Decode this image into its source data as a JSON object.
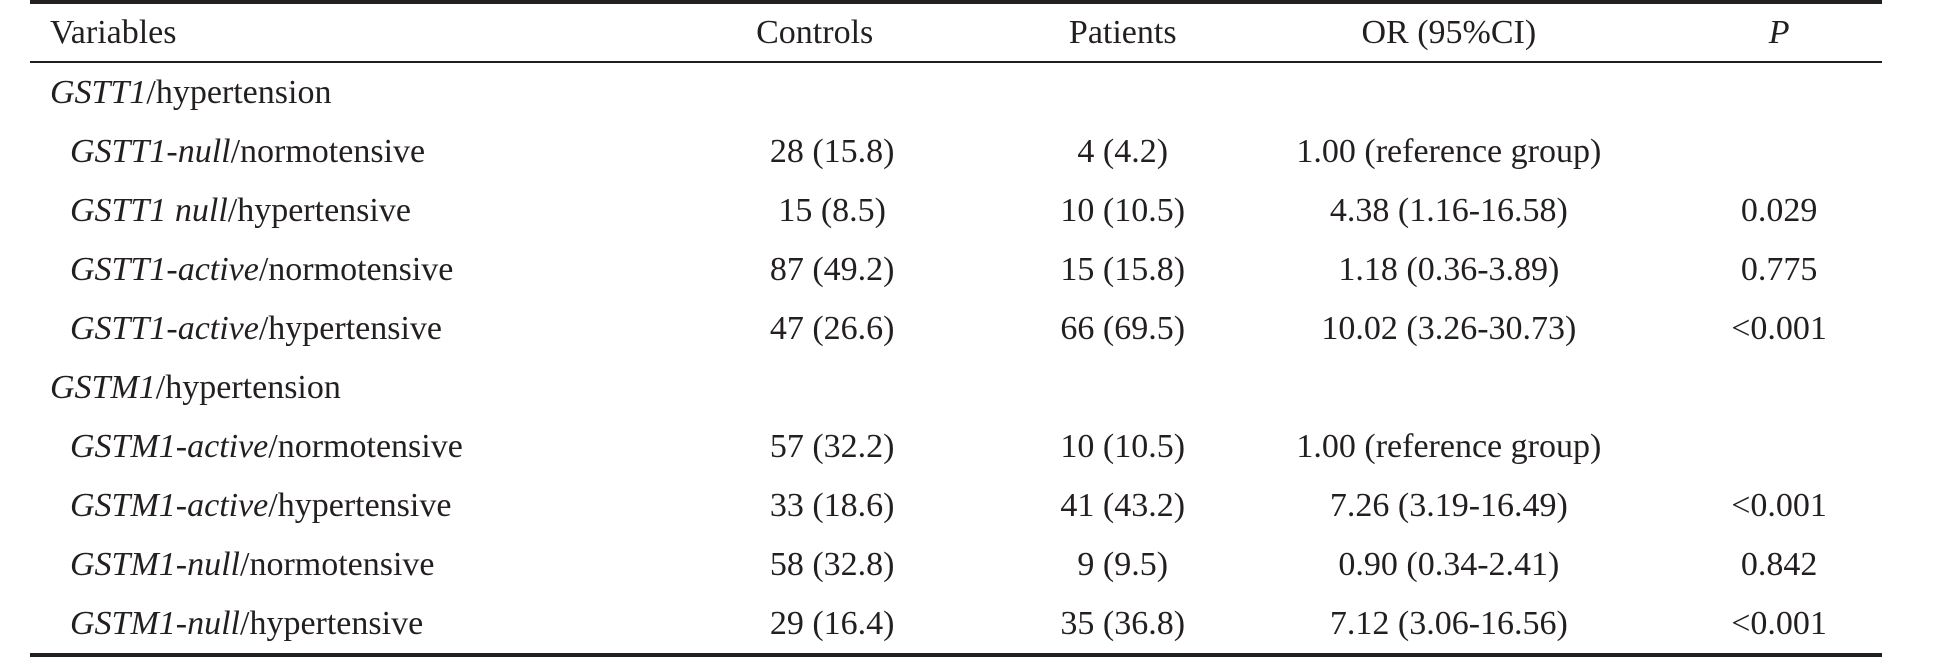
{
  "table": {
    "headers": {
      "variables": "Variables",
      "controls": "Controls",
      "patients": "Patients",
      "or": "OR (95%CI)",
      "p": "P"
    },
    "groups": [
      {
        "gene": "GSTT1",
        "label_suffix": "/hypertension",
        "rows": [
          {
            "gene": "GSTT1-null",
            "status": "/normotensive",
            "controls": "28 (15.8)",
            "patients": "4 (4.2)",
            "or": "1.00 (reference group)",
            "p": ""
          },
          {
            "gene": "GSTT1 null",
            "status": "/hypertensive",
            "controls": "15 (8.5)",
            "patients": "10 (10.5)",
            "or": "4.38 (1.16-16.58)",
            "p": "0.029"
          },
          {
            "gene": "GSTT1-active",
            "status": "/normotensive",
            "controls": "87 (49.2)",
            "patients": "15 (15.8)",
            "or": "1.18 (0.36-3.89)",
            "p": "0.775"
          },
          {
            "gene": "GSTT1-active",
            "status": "/hypertensive",
            "controls": "47 (26.6)",
            "patients": "66 (69.5)",
            "or": "10.02 (3.26-30.73)",
            "p": "<0.001"
          }
        ]
      },
      {
        "gene": "GSTM1",
        "label_suffix": "/hypertension",
        "rows": [
          {
            "gene": "GSTM1-active",
            "status": "/normotensive",
            "controls": "57 (32.2)",
            "patients": "10 (10.5)",
            "or": "1.00 (reference group)",
            "p": ""
          },
          {
            "gene": "GSTM1-active",
            "status": "/hypertensive",
            "controls": "33 (18.6)",
            "patients": "41 (43.2)",
            "or": "7.26 (3.19-16.49)",
            "p": "<0.001"
          },
          {
            "gene": "GSTM1-null",
            "status": "/normotensive",
            "controls": "58 (32.8)",
            "patients": "9 (9.5)",
            "or": "0.90 (0.34-2.41)",
            "p": "0.842"
          },
          {
            "gene": "GSTM1-null",
            "status": "/hypertensive",
            "controls": "29 (16.4)",
            "patients": "35 (36.8)",
            "or": "7.12 (3.06-16.56)",
            "p": "<0.001"
          }
        ]
      }
    ]
  }
}
